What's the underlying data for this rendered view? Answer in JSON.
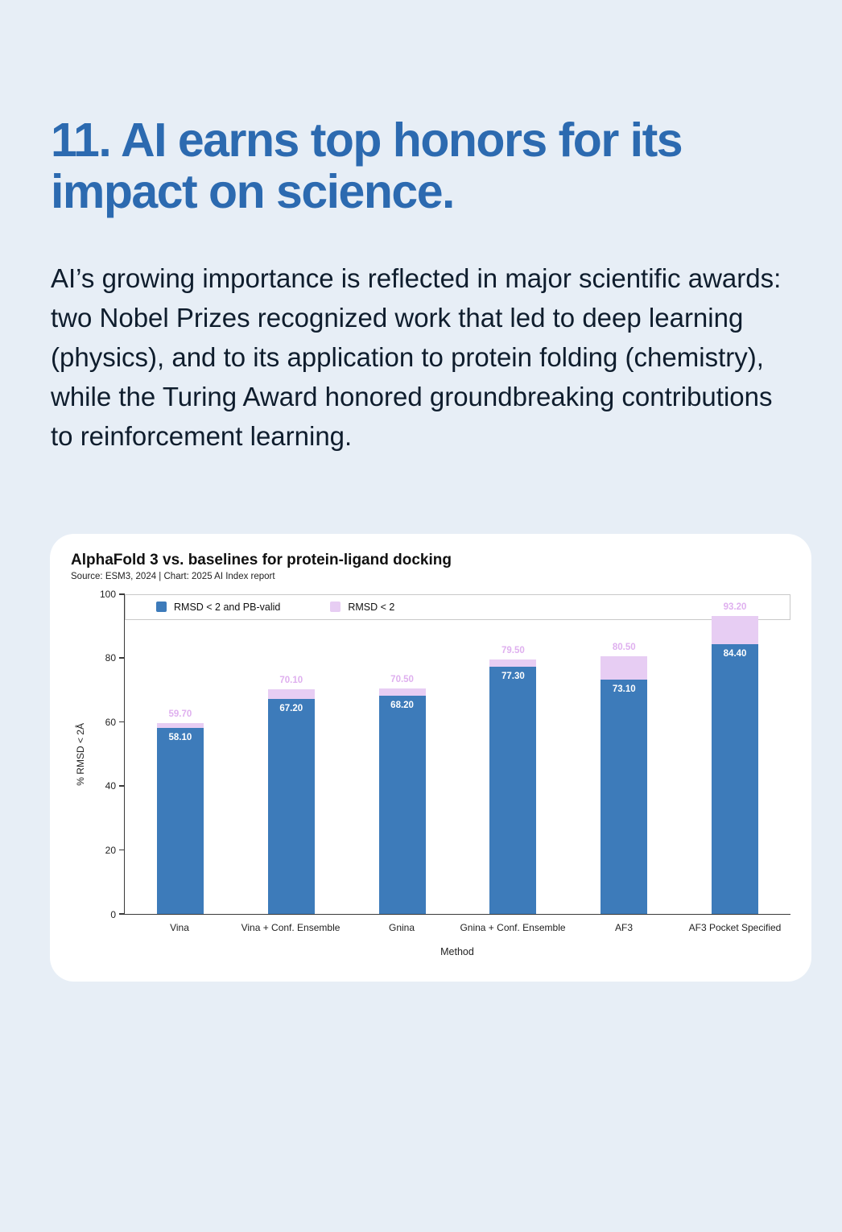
{
  "page": {
    "heading_lines": [
      "11. AI earns top honors for its",
      "impact on science."
    ],
    "paragraph": "AI’s growing importance is reflected in major scientific awards: two Nobel Prizes recognized work  that led to deep learning (physics), and to its application to protein folding (chemistry), while the Turing Award honored groundbreaking contributions to reinforcement learning."
  },
  "colors": {
    "page_bg": "#e7eef6",
    "heading": "#2c6ab0",
    "body_text": "#0f1d2d",
    "card_bg": "#ffffff",
    "bar_blue": "#3d7bba",
    "bar_purple": "#e7cdf3",
    "total_label": "#dfb0ef"
  },
  "chart_data": {
    "type": "bar",
    "stacked": true,
    "title": "AlphaFold 3 vs. baselines for protein-ligand docking",
    "source": "Source: ESM3, 2024 | Chart: 2025 AI Index report",
    "categories": [
      "Vina",
      "Vina + Conf. Ensemble",
      "Gnina",
      "Gnina + Conf. Ensemble",
      "AF3",
      "AF3 Pocket Specified"
    ],
    "series": [
      {
        "name": "RMSD < 2 and PB-valid",
        "color": "#3d7bba",
        "values": [
          58.1,
          67.2,
          68.2,
          77.3,
          73.1,
          84.4
        ],
        "label_style": "inside-white"
      },
      {
        "name": "RMSD < 2",
        "color": "#e7cdf3",
        "represents": "total",
        "values": [
          59.7,
          70.1,
          70.5,
          79.5,
          80.5,
          93.2
        ],
        "label_style": "above-purple"
      }
    ],
    "xlabel": "Method",
    "ylabel": "% RMSD < 2Å",
    "ylim": [
      0,
      100
    ],
    "yticks": [
      0,
      20,
      40,
      60,
      80,
      100
    ],
    "legend_position": "top",
    "grid": false
  }
}
